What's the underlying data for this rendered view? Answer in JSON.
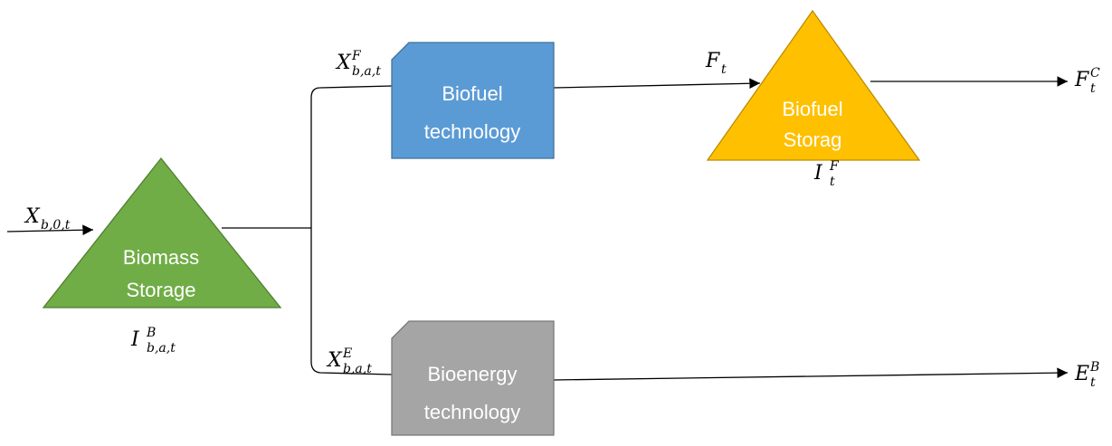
{
  "nodes": [
    {
      "lines": [
        "Biomass",
        "Storage"
      ]
    },
    {
      "lines": [
        "Biofuel",
        "technology"
      ]
    },
    {
      "lines": [
        "Bioenergy",
        "technology"
      ]
    },
    {
      "lines": [
        "Biofuel",
        "Storag"
      ]
    }
  ],
  "labels": [
    {
      "base": "X",
      "sub": "b,0,t"
    },
    {
      "base": "I",
      "sup": "B",
      "sub": "b,a,t"
    },
    {
      "base": "X",
      "sup": "F",
      "sub": "b,a,t"
    },
    {
      "base": "X",
      "sup": "E",
      "sub": "b,a,t"
    },
    {
      "base": "F",
      "sub": "t"
    },
    {
      "base": "I",
      "sup": "F",
      "sub": "t"
    },
    {
      "base": "F",
      "sup": "C",
      "sub": "t"
    },
    {
      "base": "E",
      "sup": "B",
      "sub": "t"
    }
  ]
}
